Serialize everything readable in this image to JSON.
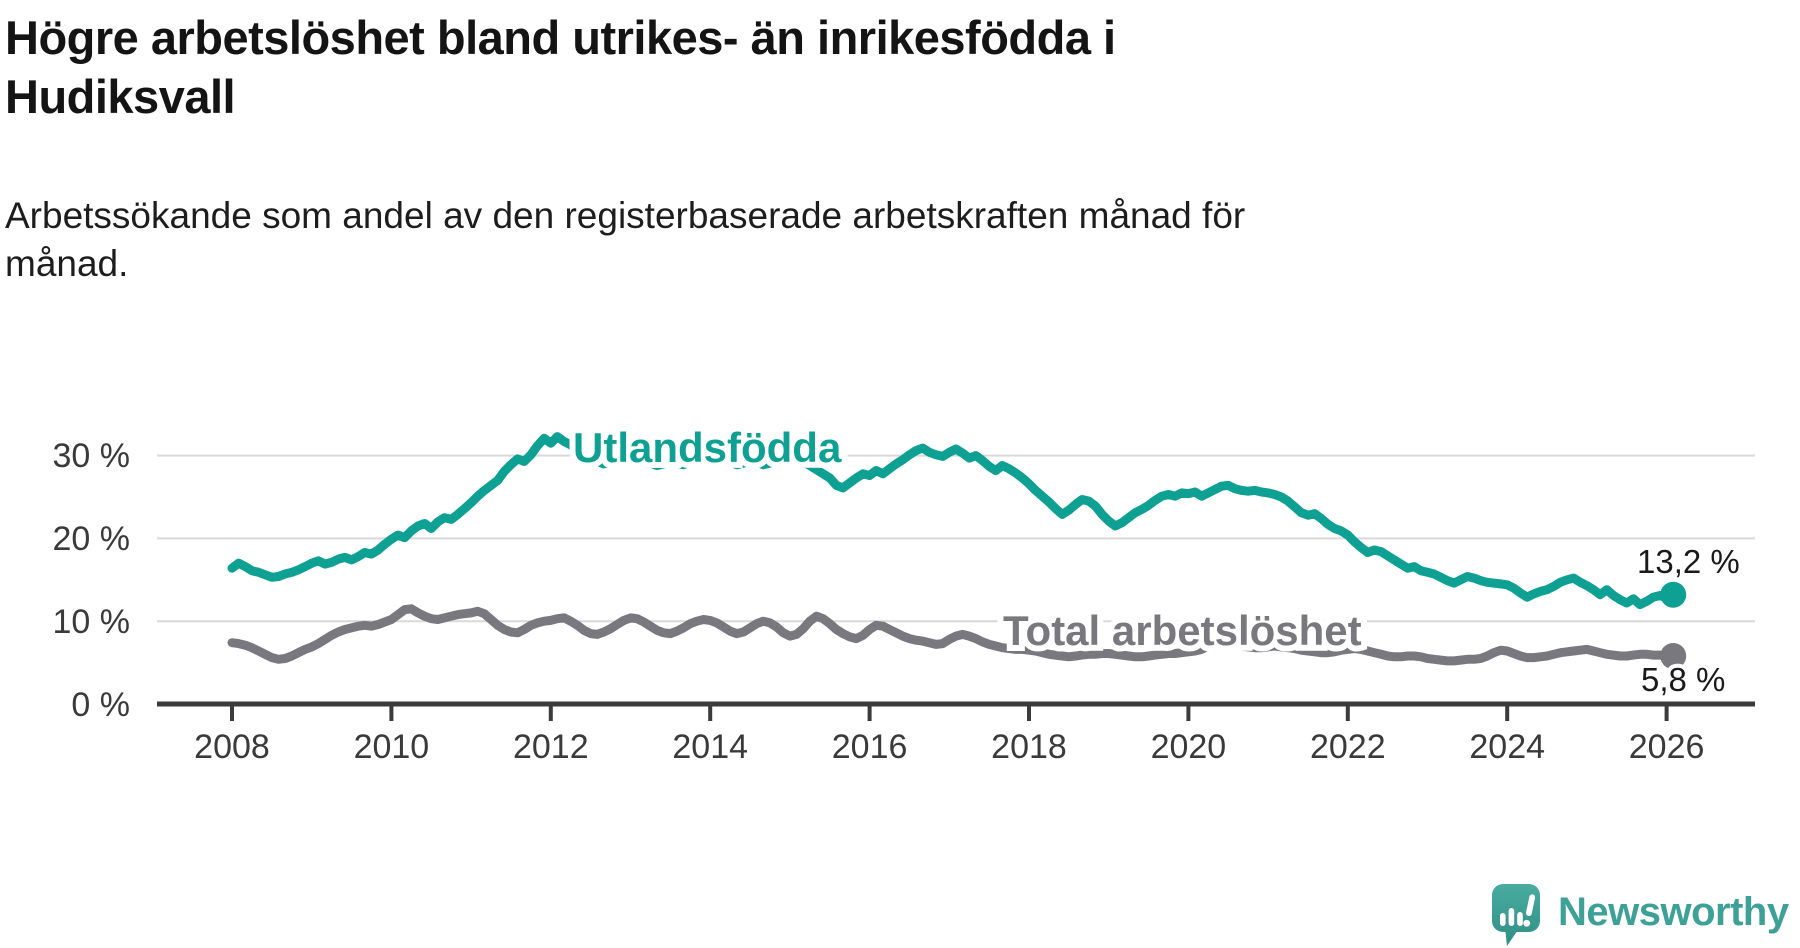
{
  "title": {
    "lines": [
      "Högre arbetslöshet bland utrikes- än inrikesfödda i",
      "Hudiksvall"
    ]
  },
  "subtitle": {
    "lines": [
      "Arbetssökande som andel av den registerbaserade arbetskraften månad för",
      "månad."
    ]
  },
  "branding": {
    "logo_icon": "newsworthy-speech-bubble-chart-icon",
    "logo_text": "Newsworthy",
    "logo_color": "#3ea198"
  },
  "chart_data": {
    "type": "line",
    "title": "Högre arbetslöshet bland utrikes- än inrikesfödda i Hudiksvall",
    "subtitle": "Arbetssökande som andel av den registerbaserade arbetskraften månad för månad.",
    "interval": "monthly",
    "x_start": "2008-01",
    "x_end": "2026-02",
    "xlim": [
      2008,
      2026.083
    ],
    "ylim": [
      0,
      33.5
    ],
    "grid": "horizontal",
    "legend_position": "labels-on-chart",
    "x_tick_labels": [
      "2008",
      "2010",
      "2012",
      "2014",
      "2016",
      "2018",
      "2020",
      "2022",
      "2024",
      "2026"
    ],
    "y_tick_labels": [
      "30 %",
      "20 %",
      "10 %",
      "0 %"
    ],
    "series": [
      {
        "name": "Utlandsfödda",
        "color": "#0ea193",
        "end_value": 13.2,
        "end_label": "13,2 %",
        "values": [
          16.4,
          17.0,
          16.6,
          16.1,
          15.9,
          15.6,
          15.3,
          15.4,
          15.7,
          15.9,
          16.2,
          16.6,
          17.0,
          17.3,
          16.9,
          17.1,
          17.5,
          17.7,
          17.4,
          17.8,
          18.3,
          18.1,
          18.6,
          19.3,
          19.9,
          20.4,
          20.1,
          20.9,
          21.5,
          21.8,
          21.2,
          22.0,
          22.5,
          22.3,
          22.9,
          23.6,
          24.3,
          25.1,
          25.8,
          26.4,
          27.0,
          28.1,
          28.9,
          29.6,
          29.3,
          30.1,
          31.2,
          32.1,
          31.5,
          32.3,
          31.7,
          31.3,
          30.6,
          30.1,
          29.7,
          29.3,
          29.0,
          29.2,
          29.5,
          29.3,
          29.6,
          29.9,
          29.5,
          29.1,
          28.8,
          29.0,
          29.3,
          29.1,
          28.9,
          29.2,
          29.5,
          29.3,
          29.6,
          29.9,
          29.6,
          29.2,
          28.9,
          29.1,
          29.4,
          29.2,
          28.9,
          29.1,
          29.5,
          29.8,
          30.0,
          29.7,
          29.3,
          28.8,
          28.3,
          27.8,
          27.3,
          26.4,
          26.1,
          26.7,
          27.3,
          27.8,
          27.6,
          28.2,
          27.8,
          28.4,
          29.0,
          29.5,
          30.1,
          30.6,
          30.9,
          30.4,
          30.1,
          29.9,
          30.4,
          30.8,
          30.3,
          29.7,
          30.0,
          29.4,
          28.7,
          28.2,
          28.8,
          28.4,
          27.9,
          27.3,
          26.6,
          25.8,
          25.1,
          24.4,
          23.6,
          22.9,
          23.4,
          24.1,
          24.7,
          24.5,
          23.9,
          22.9,
          22.1,
          21.5,
          21.9,
          22.5,
          23.1,
          23.5,
          24.0,
          24.6,
          25.1,
          25.3,
          25.1,
          25.5,
          25.4,
          25.6,
          25.1,
          25.5,
          25.9,
          26.3,
          26.4,
          26.0,
          25.8,
          25.7,
          25.8,
          25.6,
          25.5,
          25.3,
          25.0,
          24.5,
          23.8,
          23.1,
          22.8,
          23.0,
          22.4,
          21.7,
          21.2,
          20.9,
          20.4,
          19.6,
          18.9,
          18.3,
          18.6,
          18.4,
          17.9,
          17.4,
          16.9,
          16.4,
          16.6,
          16.1,
          15.9,
          15.7,
          15.3,
          14.9,
          14.6,
          15.0,
          15.4,
          15.2,
          14.9,
          14.7,
          14.6,
          14.5,
          14.4,
          14.0,
          13.4,
          12.9,
          13.3,
          13.6,
          13.8,
          14.2,
          14.7,
          15.0,
          15.2,
          14.7,
          14.3,
          13.8,
          13.2,
          13.8,
          13.1,
          12.6,
          12.2,
          12.7,
          12.0,
          12.4,
          12.9,
          13.1,
          12.8,
          13.2
        ]
      },
      {
        "name": "Total arbetslöshet",
        "color": "#7a787f",
        "end_value": 5.8,
        "end_label": "5,8 %",
        "values": [
          7.4,
          7.3,
          7.1,
          6.8,
          6.4,
          6.0,
          5.6,
          5.4,
          5.5,
          5.8,
          6.2,
          6.6,
          6.9,
          7.3,
          7.8,
          8.3,
          8.7,
          9.0,
          9.2,
          9.4,
          9.5,
          9.4,
          9.6,
          9.9,
          10.2,
          10.8,
          11.4,
          11.5,
          11.0,
          10.6,
          10.3,
          10.2,
          10.4,
          10.6,
          10.8,
          10.9,
          11.0,
          11.2,
          10.9,
          10.2,
          9.5,
          9.0,
          8.7,
          8.6,
          9.0,
          9.5,
          9.8,
          10.0,
          10.1,
          10.3,
          10.4,
          10.0,
          9.5,
          8.9,
          8.5,
          8.4,
          8.7,
          9.1,
          9.6,
          10.1,
          10.4,
          10.3,
          9.9,
          9.4,
          8.9,
          8.6,
          8.5,
          8.8,
          9.2,
          9.7,
          10.0,
          10.2,
          10.1,
          9.8,
          9.3,
          8.8,
          8.5,
          8.7,
          9.2,
          9.7,
          10.0,
          9.8,
          9.3,
          8.6,
          8.2,
          8.4,
          9.1,
          10.0,
          10.6,
          10.3,
          9.7,
          9.0,
          8.5,
          8.1,
          7.9,
          8.3,
          9.0,
          9.5,
          9.4,
          9.0,
          8.6,
          8.2,
          7.9,
          7.7,
          7.6,
          7.4,
          7.2,
          7.3,
          7.8,
          8.2,
          8.4,
          8.2,
          7.9,
          7.5,
          7.2,
          7.0,
          6.8,
          6.7,
          6.6,
          6.6,
          6.5,
          6.4,
          6.2,
          6.0,
          5.9,
          5.8,
          5.7,
          5.8,
          5.9,
          6.0,
          6.0,
          6.1,
          6.1,
          6.0,
          5.9,
          5.8,
          5.7,
          5.7,
          5.8,
          5.9,
          6.0,
          6.1,
          6.1,
          6.2,
          6.3,
          6.4,
          6.6,
          7.0,
          7.2,
          7.3,
          7.2,
          7.1,
          7.0,
          6.9,
          6.8,
          6.8,
          6.9,
          7.0,
          6.9,
          6.8,
          6.7,
          6.5,
          6.4,
          6.3,
          6.2,
          6.2,
          6.3,
          6.5,
          6.6,
          6.7,
          6.6,
          6.4,
          6.2,
          6.0,
          5.8,
          5.7,
          5.7,
          5.8,
          5.8,
          5.7,
          5.5,
          5.4,
          5.3,
          5.2,
          5.2,
          5.3,
          5.4,
          5.4,
          5.5,
          5.8,
          6.2,
          6.5,
          6.4,
          6.1,
          5.8,
          5.6,
          5.6,
          5.7,
          5.8,
          6.0,
          6.2,
          6.3,
          6.4,
          6.5,
          6.6,
          6.4,
          6.2,
          6.0,
          5.9,
          5.8,
          5.8,
          5.9,
          6.0,
          6.0,
          5.9,
          5.9,
          5.9,
          5.8
        ]
      }
    ]
  }
}
